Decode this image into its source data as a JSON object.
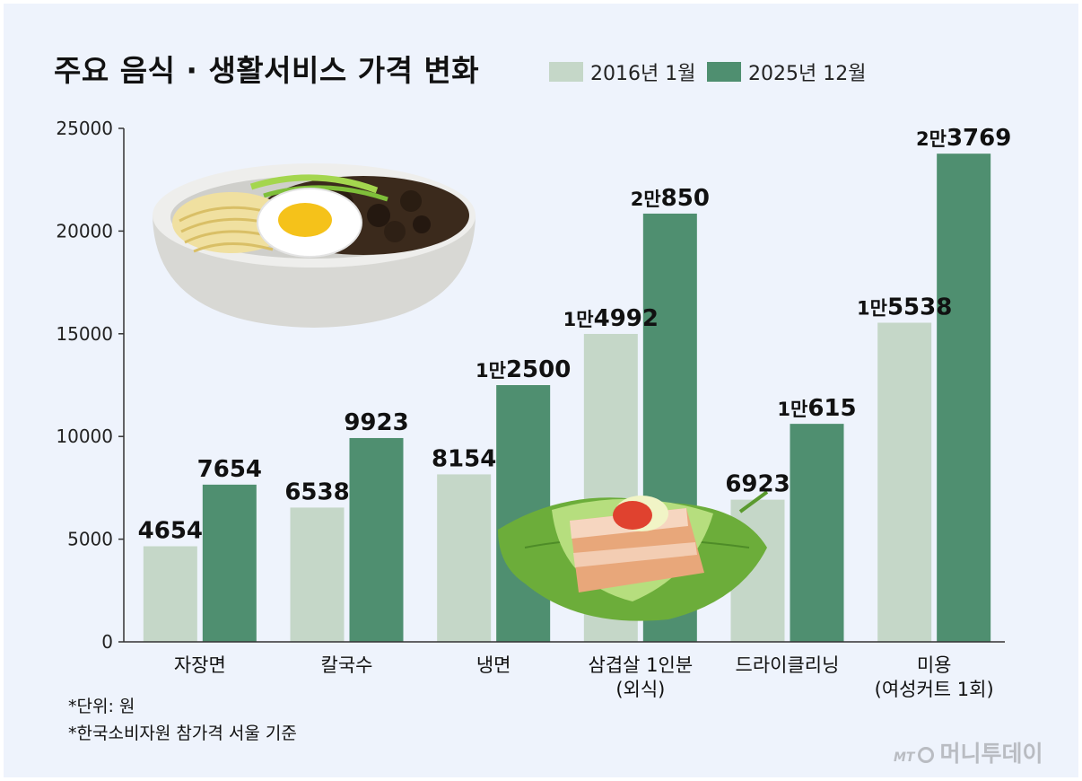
{
  "title": "주요 음식 · 생활서비스 가격 변화",
  "notes": [
    "*단위: 원",
    "*한국소비자원 참가격 서울 기준"
  ],
  "brand": {
    "mt": "MT",
    "name": "머니투데이"
  },
  "colors": {
    "series_2016": "#c5d7c8",
    "series_2025": "#4f8f70",
    "background": "#eef3fc",
    "axis": "#333333"
  },
  "illustrations": [
    "jajangmyeon-bowl",
    "samgyeopsal-wrap"
  ],
  "chart_data": {
    "type": "bar",
    "title": "주요 음식 · 생활서비스 가격 변화",
    "categories": [
      [
        "자장면"
      ],
      [
        "칼국수"
      ],
      [
        "냉면"
      ],
      [
        "삼겹살 1인분",
        "(외식)"
      ],
      [
        "드라이클리닝"
      ],
      [
        "미용",
        "(여성커트 1회)"
      ]
    ],
    "series": [
      {
        "name": "2016년 1월",
        "values": [
          4654,
          6538,
          8154,
          14992,
          6923,
          15538
        ],
        "labels": [
          [
            "",
            "4654"
          ],
          [
            "",
            "6538"
          ],
          [
            "",
            "8154"
          ],
          [
            "1만",
            "4992"
          ],
          [
            "",
            "6923"
          ],
          [
            "1만",
            "5538"
          ]
        ]
      },
      {
        "name": "2025년 12월",
        "values": [
          7654,
          9923,
          12500,
          20850,
          10615,
          23769
        ],
        "labels": [
          [
            "",
            "7654"
          ],
          [
            "",
            "9923"
          ],
          [
            "1만",
            "2500"
          ],
          [
            "2만",
            "850"
          ],
          [
            "1만",
            "615"
          ],
          [
            "2만",
            "3769"
          ]
        ]
      }
    ],
    "yticks": [
      0,
      5000,
      10000,
      15000,
      20000,
      25000
    ],
    "ylim": [
      0,
      25000
    ],
    "xlabel": "",
    "ylabel": "",
    "unit": "원"
  }
}
